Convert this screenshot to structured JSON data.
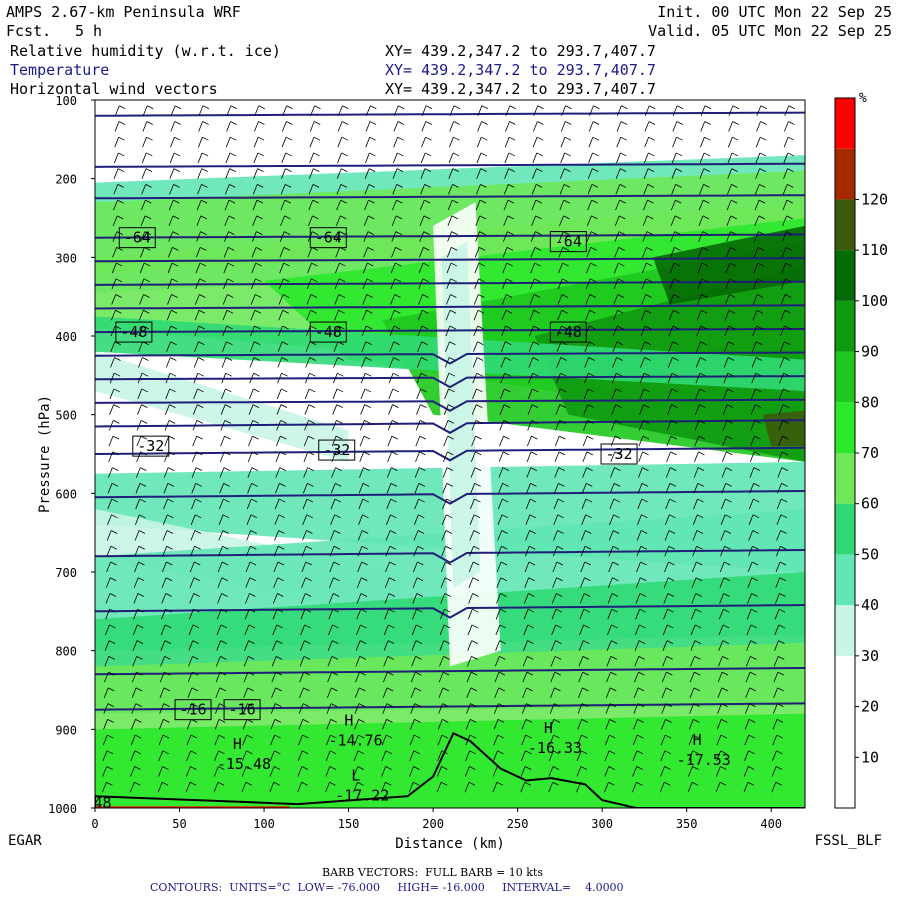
{
  "header": {
    "title": "AMPS 2.67-km Peninsula WRF",
    "fcst_label": "Fcst.",
    "fcst_value": "5 h",
    "init": "Init. 00 UTC Mon 22 Sep 25",
    "valid": "Valid. 05 UTC Mon 22 Sep 25",
    "fields": [
      {
        "name": "Relative humidity (w.r.t. ice)",
        "xy": "XY= 439.2,347.2 to 293.7,407.7"
      },
      {
        "name": "Temperature",
        "xy": "XY= 439.2,347.2 to 293.7,407.7"
      },
      {
        "name": "Horizontal wind vectors",
        "xy": "XY= 439.2,347.2 to 293.7,407.7"
      }
    ]
  },
  "footer": {
    "left_label": "EGAR",
    "right_label": "FSSL_BLF",
    "barb_note": "BARB VECTORS:  FULL BARB = 10 kts",
    "contour_note": "CONTOURS:  UNITS=°C  LOW= -76.000     HIGH= -16.000     INTERVAL=    4.0000"
  },
  "colors": {
    "contour": "#1f1f7a",
    "terrain": "#000000",
    "rh_scale": [
      "#ffffff",
      "#ffffff",
      "#ffffff",
      "#c8f5e6",
      "#61e6b4",
      "#30d976",
      "#6ee859",
      "#2be82b",
      "#1ec81e",
      "#0f9a0f",
      "#066a06",
      "#3d5a0c",
      "#a62800",
      "#ff0000"
    ]
  },
  "chart_data": {
    "type": "cross-section",
    "xlabel": "Distance (km)",
    "ylabel": "Pressure (hPa)",
    "xlim": [
      0,
      420
    ],
    "ylim": [
      1000,
      100
    ],
    "x_ticks": [
      0,
      50,
      100,
      150,
      200,
      250,
      300,
      350,
      400
    ],
    "y_ticks": [
      100,
      200,
      300,
      400,
      500,
      600,
      700,
      800,
      900,
      1000
    ],
    "colorbar": {
      "unit": "%",
      "ticks": [
        10,
        20,
        30,
        40,
        50,
        60,
        70,
        80,
        90,
        100,
        110,
        120
      ]
    },
    "temperature_labels": [
      {
        "text": "-64",
        "x": 25,
        "p": 275
      },
      {
        "text": "-64",
        "x": 138,
        "p": 275
      },
      {
        "text": "-64",
        "x": 280,
        "p": 280
      },
      {
        "text": "-48",
        "x": 23,
        "p": 395
      },
      {
        "text": "-48",
        "x": 138,
        "p": 395
      },
      {
        "text": "-48",
        "x": 280,
        "p": 395
      },
      {
        "text": "-32",
        "x": 33,
        "p": 540
      },
      {
        "text": "-32",
        "x": 143,
        "p": 545
      },
      {
        "text": "-32",
        "x": 310,
        "p": 550
      },
      {
        "text": "-16",
        "x": 58,
        "p": 875
      },
      {
        "text": "-16",
        "x": 87,
        "p": 875
      }
    ],
    "extrema": [
      {
        "mark": "H",
        "value": "-15.48",
        "x": 78,
        "p": 935
      },
      {
        "mark": "H",
        "value": "-14.76",
        "x": 144,
        "p": 905
      },
      {
        "mark": "H",
        "value": "-16.33",
        "x": 262,
        "p": 915
      },
      {
        "mark": "H",
        "value": "-17.53",
        "x": 350,
        "p": 930
      },
      {
        "mark": "L",
        "value": "-17.22",
        "x": 148,
        "p": 975
      },
      {
        "mark": "",
        "value": "48",
        "x": 5,
        "p": 985
      }
    ],
    "isotherm_pressures": [
      120,
      185,
      225,
      275,
      305,
      335,
      365,
      395,
      425,
      455,
      485,
      515,
      550,
      605,
      680,
      750,
      830,
      875
    ]
  }
}
